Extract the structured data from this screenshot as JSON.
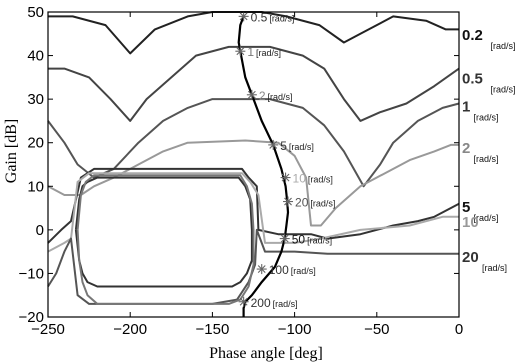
{
  "chart_data": {
    "type": "line",
    "xlabel": "Phase angle [deg]",
    "ylabel": "Gain [dB]",
    "xlim": [
      -250,
      0
    ],
    "ylim": [
      -20,
      50
    ],
    "xticks": [
      "-250",
      "-200",
      "-150",
      "-100",
      "-50",
      "0"
    ],
    "yticks": [
      "-20",
      "-10",
      "0",
      "10",
      "20",
      "30",
      "40",
      "50"
    ],
    "grid": false,
    "contour_labels": [
      {
        "text": "0.2",
        "unit": "[rad/s]",
        "y": 45,
        "color": "#111111"
      },
      {
        "text": "0.5",
        "unit": "[rad/s]",
        "y": 35,
        "color": "#333333"
      },
      {
        "text": "1",
        "unit": "[rad/s]",
        "y": 28.5,
        "color": "#333333"
      },
      {
        "text": "2",
        "unit": "[rad/s]",
        "y": 19,
        "color": "#888888"
      },
      {
        "text": "5",
        "unit": "[rad/s]",
        "y": 5.5,
        "color": "#111111"
      },
      {
        "text": "10",
        "unit": "",
        "y": 2,
        "color": "#999999"
      },
      {
        "text": "20",
        "unit": "[rad/s]",
        "y": -6,
        "color": "#333333"
      }
    ],
    "series": [
      {
        "color": "#222222",
        "points": [
          [
            -250,
            49
          ],
          [
            -235,
            49
          ],
          [
            -215,
            47
          ],
          [
            -200,
            40.5
          ],
          [
            -185,
            46
          ],
          [
            -165,
            49
          ],
          [
            -150,
            50
          ],
          [
            -120,
            50
          ],
          [
            -105,
            49
          ],
          [
            -85,
            47
          ],
          [
            -70,
            43
          ],
          [
            -60,
            45
          ],
          [
            -40,
            49
          ],
          [
            -20,
            48
          ],
          [
            -8,
            46
          ],
          [
            0,
            46
          ]
        ]
      },
      {
        "color": "#444444",
        "points": [
          [
            -250,
            37
          ],
          [
            -240,
            37
          ],
          [
            -225,
            35
          ],
          [
            -212,
            30
          ],
          [
            -200,
            25
          ],
          [
            -190,
            30
          ],
          [
            -175,
            35
          ],
          [
            -160,
            40
          ],
          [
            -140,
            42
          ],
          [
            -115,
            42
          ],
          [
            -95,
            40
          ],
          [
            -82,
            37
          ],
          [
            -70,
            30
          ],
          [
            -60,
            25
          ],
          [
            -48,
            27
          ],
          [
            -32,
            29
          ],
          [
            -15,
            33
          ],
          [
            0,
            37
          ]
        ]
      },
      {
        "color": "#555555",
        "points": [
          [
            -250,
            25
          ],
          [
            -240,
            20
          ],
          [
            -232,
            15
          ],
          [
            -222,
            12
          ],
          [
            -210,
            14
          ],
          [
            -195,
            20
          ],
          [
            -180,
            25
          ],
          [
            -165,
            28
          ],
          [
            -150,
            30
          ],
          [
            -115,
            30
          ],
          [
            -95,
            28
          ],
          [
            -82,
            24
          ],
          [
            -70,
            18
          ],
          [
            -58,
            10
          ],
          [
            -48,
            15
          ],
          [
            -40,
            20
          ],
          [
            -25,
            25
          ],
          [
            -10,
            28
          ],
          [
            0,
            29
          ]
        ]
      },
      {
        "color": "#999999",
        "points": [
          [
            -250,
            10
          ],
          [
            -240,
            8
          ],
          [
            -230,
            8
          ],
          [
            -222,
            10
          ],
          [
            -210,
            12
          ],
          [
            -195,
            15
          ],
          [
            -180,
            18
          ],
          [
            -165,
            20
          ],
          [
            -130,
            20.5
          ],
          [
            -110,
            20
          ],
          [
            -100,
            17
          ],
          [
            -93,
            12
          ],
          [
            -90,
            1
          ],
          [
            -84,
            1
          ],
          [
            -75,
            5
          ],
          [
            -60,
            10
          ],
          [
            -45,
            13
          ],
          [
            -30,
            16
          ],
          [
            -15,
            18
          ],
          [
            -5,
            19.5
          ],
          [
            0,
            19.5
          ]
        ]
      },
      {
        "color": "#333333",
        "points": [
          [
            -250,
            -3
          ],
          [
            -242,
            0
          ],
          [
            -236,
            2
          ],
          [
            -230,
            12
          ],
          [
            -222,
            14
          ],
          [
            -160,
            14
          ],
          [
            -132,
            14
          ],
          [
            -128,
            12
          ],
          [
            -123,
            10
          ],
          [
            -122,
            0
          ],
          [
            -110,
            -1
          ],
          [
            -90,
            -1
          ],
          [
            -80,
            -2
          ],
          [
            -60,
            -1
          ],
          [
            -40,
            1
          ],
          [
            -25,
            2
          ],
          [
            -15,
            3
          ],
          [
            0,
            6
          ]
        ]
      },
      {
        "color": "#aaaaaa",
        "points": [
          [
            -250,
            -5
          ],
          [
            -240,
            -3
          ],
          [
            -236,
            -2
          ],
          [
            -232,
            11
          ],
          [
            -225,
            13
          ],
          [
            -160,
            13
          ],
          [
            -132,
            13
          ],
          [
            -127,
            11
          ],
          [
            -122,
            8
          ],
          [
            -118,
            -3
          ],
          [
            -100,
            -3
          ],
          [
            -84,
            -2
          ],
          [
            -60,
            0
          ],
          [
            -30,
            1
          ],
          [
            -10,
            3
          ],
          [
            0,
            3
          ]
        ]
      },
      {
        "color": "#555555",
        "points": [
          [
            -250,
            -13
          ],
          [
            -245,
            -10
          ],
          [
            -240,
            -5
          ],
          [
            -236,
            -2
          ],
          [
            -232,
            -15
          ],
          [
            -225,
            -17
          ],
          [
            -150,
            -17
          ],
          [
            -135,
            -16
          ],
          [
            -128,
            -12
          ],
          [
            -124,
            -8
          ],
          [
            -123,
            0
          ],
          [
            -120,
            -3
          ],
          [
            -118,
            -5
          ],
          [
            -100,
            -5
          ],
          [
            -80,
            -5.5
          ],
          [
            -40,
            -5.5
          ],
          [
            -10,
            -5.5
          ],
          [
            0,
            -5.5
          ]
        ]
      },
      {
        "color": "#333333",
        "points": [
          [
            -233,
            0
          ],
          [
            -231,
            7
          ],
          [
            -229,
            10
          ],
          [
            -226,
            11
          ],
          [
            -220,
            12
          ],
          [
            -160,
            12
          ],
          [
            -134,
            12
          ],
          [
            -130,
            10
          ],
          [
            -127,
            7
          ],
          [
            -126,
            0
          ],
          [
            -126,
            -7
          ],
          [
            -129,
            -10
          ],
          [
            -133,
            -12
          ],
          [
            -138,
            -13
          ],
          [
            -220,
            -13
          ],
          [
            -226,
            -12
          ],
          [
            -229,
            -10
          ],
          [
            -231,
            -7
          ],
          [
            -233,
            0
          ]
        ]
      },
      {
        "color": "#777777",
        "points": [
          [
            -232,
            0
          ],
          [
            -230,
            8
          ],
          [
            -227,
            11
          ],
          [
            -222,
            12.5
          ],
          [
            -160,
            12.5
          ],
          [
            -133,
            12.5
          ],
          [
            -129,
            10
          ],
          [
            -126,
            6
          ],
          [
            -125,
            0
          ],
          [
            -125,
            -8
          ],
          [
            -128,
            -13
          ],
          [
            -133,
            -16
          ],
          [
            -140,
            -17
          ],
          [
            -220,
            -17
          ],
          [
            -226,
            -15
          ],
          [
            -229,
            -12
          ],
          [
            -231,
            -7
          ],
          [
            -232,
            0
          ]
        ]
      }
    ],
    "locus": {
      "color": "#000000",
      "points": [
        [
          -131,
          49
        ],
        [
          -133,
          47
        ],
        [
          -134,
          43
        ],
        [
          -133,
          41
        ],
        [
          -130,
          35
        ],
        [
          -126,
          31
        ],
        [
          -120,
          25
        ],
        [
          -113,
          19.5
        ],
        [
          -108,
          14
        ],
        [
          -105.5,
          10
        ],
        [
          -104.5,
          6.5
        ],
        [
          -104,
          4
        ],
        [
          -105,
          1
        ],
        [
          -106,
          -2
        ],
        [
          -108,
          -5
        ],
        [
          -112,
          -8.5
        ],
        [
          -120,
          -12
        ],
        [
          -126,
          -15
        ],
        [
          -130,
          -16.5
        ],
        [
          -131,
          -18
        ],
        [
          -131,
          -20
        ]
      ],
      "markers": [
        {
          "label": "0.5",
          "unit": "[rad/s]",
          "x": -131,
          "y": 49,
          "label_color": "#333333"
        },
        {
          "label": "1",
          "unit": "[rad/s]",
          "x": -133,
          "y": 41,
          "label_color": "#777777"
        },
        {
          "label": "2",
          "unit": "[rad/s]",
          "x": -126,
          "y": 31,
          "label_color": "#888888"
        },
        {
          "label": "5",
          "unit": "[rad/s]",
          "x": -113,
          "y": 19.5,
          "label_color": "#333333"
        },
        {
          "label": "10",
          "unit": "[rad/s]",
          "x": -105.5,
          "y": 12,
          "label_color": "#aaaaaa"
        },
        {
          "label": "20",
          "unit": "[rad/s]",
          "x": -104,
          "y": 6.5,
          "label_color": "#555555"
        },
        {
          "label": "50",
          "unit": "[rad/s]",
          "x": -106,
          "y": -2,
          "label_color": "#111111"
        },
        {
          "label": "100",
          "unit": "[rad/s]",
          "x": -120,
          "y": -9,
          "label_color": "#333333"
        },
        {
          "label": "200",
          "unit": "[rad/s]",
          "x": -131,
          "y": -16.5,
          "label_color": "#333333"
        }
      ]
    }
  }
}
